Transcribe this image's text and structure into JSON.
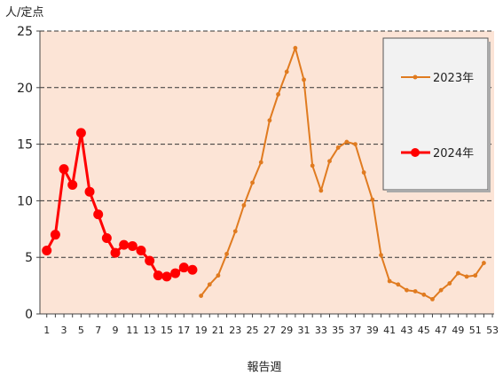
{
  "chart_data": {
    "type": "line",
    "title": "",
    "ylabel": "人/定点",
    "xlabel": "報告週",
    "ylim": [
      0,
      25
    ],
    "yticks": [
      0,
      5,
      10,
      15,
      20,
      25
    ],
    "xlim": [
      1,
      53
    ],
    "xticks": [
      1,
      3,
      5,
      7,
      9,
      11,
      13,
      15,
      17,
      19,
      21,
      23,
      25,
      27,
      29,
      31,
      33,
      35,
      37,
      39,
      41,
      43,
      45,
      47,
      49,
      51,
      53
    ],
    "grid": "horizontal dashed",
    "legend_position": "top-right",
    "background_color": "#fce4d6",
    "series": [
      {
        "name": "2023年",
        "color": "#e07b20",
        "marker_size": "small",
        "x": [
          19,
          20,
          21,
          22,
          23,
          24,
          25,
          26,
          27,
          28,
          29,
          30,
          31,
          32,
          33,
          34,
          35,
          36,
          37,
          38,
          39,
          40,
          41,
          42,
          43,
          44,
          45,
          46,
          47,
          48,
          49,
          50,
          51,
          52
        ],
        "y": [
          1.6,
          2.6,
          3.4,
          5.3,
          7.3,
          9.6,
          11.6,
          13.4,
          17.1,
          19.4,
          21.4,
          23.5,
          20.7,
          13.1,
          10.9,
          13.5,
          14.7,
          15.2,
          15.0,
          12.5,
          10.1,
          5.2,
          2.9,
          2.6,
          2.1,
          2.0,
          1.7,
          1.3,
          2.1,
          2.7,
          3.6,
          3.3,
          3.4,
          4.5
        ]
      },
      {
        "name": "2024年",
        "color": "#ff0000",
        "marker_size": "large",
        "x": [
          1,
          2,
          3,
          4,
          5,
          6,
          7,
          8,
          9,
          10,
          11,
          12,
          13,
          14,
          15,
          16,
          17,
          18
        ],
        "y": [
          5.6,
          7.0,
          12.8,
          11.4,
          16.0,
          10.8,
          8.8,
          6.7,
          5.4,
          6.1,
          6.0,
          5.6,
          4.7,
          3.4,
          3.3,
          3.6,
          4.1,
          3.9
        ]
      }
    ]
  }
}
